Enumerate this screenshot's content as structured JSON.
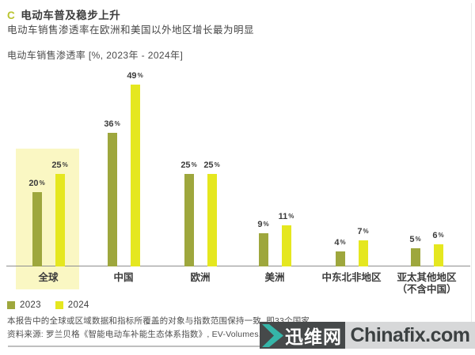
{
  "header": {
    "marker": "C",
    "title": "电动车普及稳步上升",
    "subtitle": "电动车销售渗透率在欧洲和美国以外地区增长最为明显",
    "axis_title": "电动车销售渗透率 [%, 2023年 - 2024年]"
  },
  "chart_data": {
    "type": "bar",
    "title": "电动车销售渗透率 [%, 2023年 - 2024年]",
    "categories": [
      "全球",
      "中国",
      "欧洲",
      "美洲",
      "中东北非地区",
      "亚太其他地区\n（不含中国）"
    ],
    "series": [
      {
        "name": "2023",
        "color": "#9ea73d",
        "values": [
          20,
          36,
          25,
          9,
          4,
          5
        ]
      },
      {
        "name": "2024",
        "color": "#e5e71f",
        "values": [
          25,
          49,
          25,
          11,
          7,
          6
        ]
      }
    ],
    "unit": "%",
    "ylim": [
      0,
      52
    ],
    "grid": false,
    "legend_position": "bottom-left",
    "highlight_category": "全球",
    "highlight_color": "#faf7c3"
  },
  "footnotes": [
    "本报告中的全球或区域数据和指标所覆盖的对象与指数范围保持一致, 即33个国家",
    "资料来源: 罗兰贝格《智能电动车补能生态体系指数》, EV-Volumes.com, IHS数据库"
  ],
  "watermark": {
    "cn_name": "迅维网",
    "domain": "Chinafix.com",
    "chevron_color": "#35b5a8",
    "dark_bg": "#46494a",
    "light_bg": "#d7d8d9"
  },
  "colors": {
    "accent": "#b9c42f",
    "series_2023": "#9ea73d",
    "series_2024": "#e5e71f",
    "highlight": "#faf7c3"
  }
}
